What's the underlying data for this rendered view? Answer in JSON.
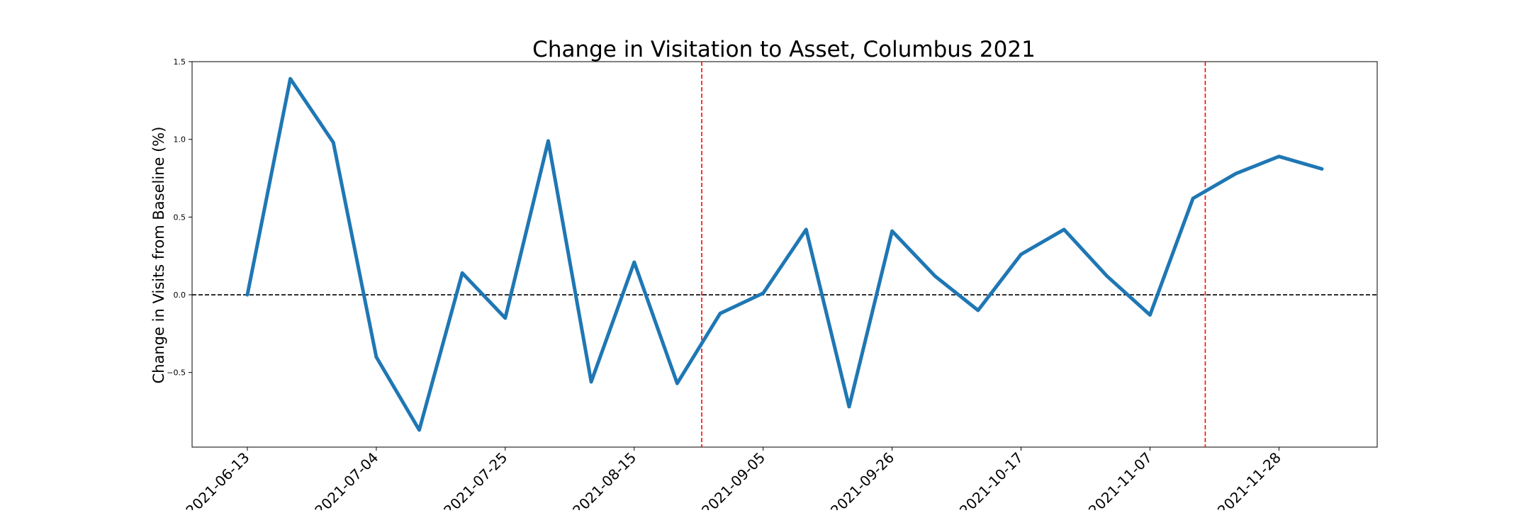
{
  "chart_data": {
    "type": "line",
    "title": "Change in Visitation to Asset, Columbus 2021",
    "xlabel": "",
    "ylabel": "Change in Visits from Baseline (%)",
    "x": [
      "2021-06-13",
      "2021-06-20",
      "2021-06-27",
      "2021-07-04",
      "2021-07-11",
      "2021-07-18",
      "2021-07-25",
      "2021-08-01",
      "2021-08-08",
      "2021-08-15",
      "2021-08-22",
      "2021-08-29",
      "2021-09-05",
      "2021-09-12",
      "2021-09-19",
      "2021-09-26",
      "2021-10-03",
      "2021-10-10",
      "2021-10-17",
      "2021-10-24",
      "2021-10-31",
      "2021-11-07",
      "2021-11-14",
      "2021-11-21",
      "2021-11-28",
      "2021-12-05"
    ],
    "series": [
      {
        "values": [
          0.0,
          1.39,
          0.98,
          -0.4,
          -0.87,
          0.14,
          -0.15,
          0.99,
          -0.56,
          0.21,
          -0.57,
          -0.12,
          0.01,
          0.42,
          -0.72,
          0.41,
          0.12,
          -0.1,
          0.26,
          0.42,
          0.12,
          -0.13,
          0.62,
          0.78,
          0.89,
          0.81
        ],
        "color": "#1f77b4"
      }
    ],
    "xticks": [
      "2021-06-13",
      "2021-07-04",
      "2021-07-25",
      "2021-08-15",
      "2021-09-05",
      "2021-09-26",
      "2021-10-17",
      "2021-11-07",
      "2021-11-28"
    ],
    "yticks": [
      "−0.5",
      "0.0",
      "0.5",
      "1.0",
      "1.5"
    ],
    "ytick_values": [
      -0.5,
      0.0,
      0.5,
      1.0,
      1.5
    ],
    "ylim": [
      -0.98,
      1.5
    ],
    "xlim": [
      "2021-06-04",
      "2021-12-14"
    ],
    "reference_lines": [
      {
        "orientation": "horizontal",
        "value": 0.0,
        "style": "dashed",
        "color": "#000000"
      },
      {
        "orientation": "vertical",
        "value": "2021-08-26",
        "style": "dashed",
        "color": "#ff0000"
      },
      {
        "orientation": "vertical",
        "value": "2021-11-16",
        "style": "dashed",
        "color": "#ff0000"
      }
    ],
    "grid": false,
    "legend": "none"
  }
}
